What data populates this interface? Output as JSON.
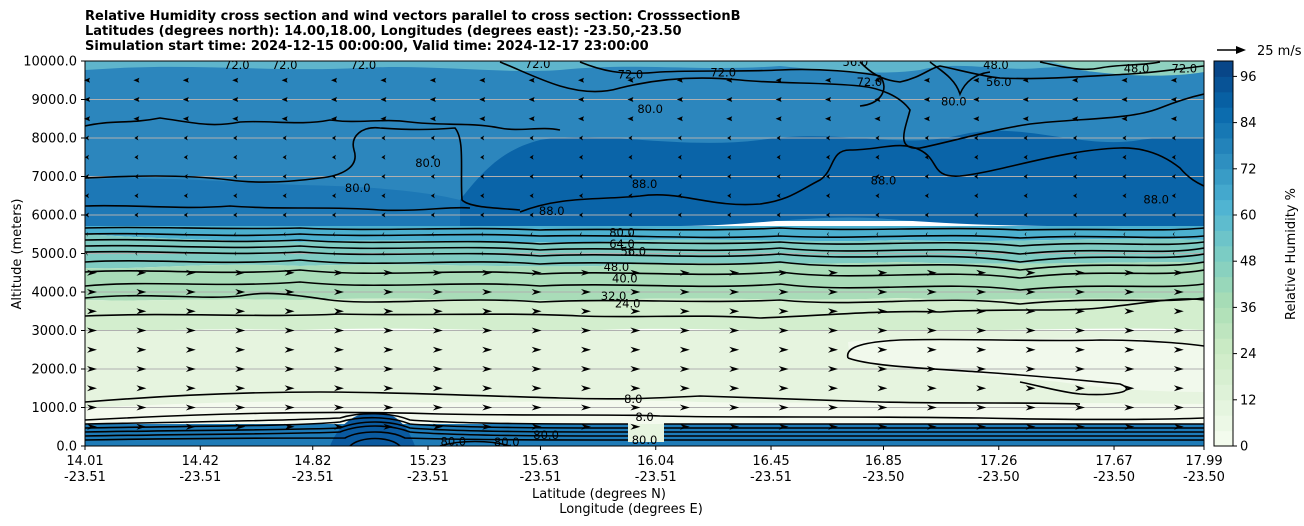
{
  "chart_data": {
    "type": "contour",
    "title_lines": [
      "Relative Humidity cross section and wind vectors parallel to cross section: CrosssectionB",
      "Latitudes (degrees north): 14.00,18.00, Longitudes (degrees east): -23.50,-23.50",
      "Simulation start time: 2024-12-15 00:00:00, Valid time: 2024-12-17 23:00:00"
    ],
    "xlabel_lines": [
      "Latitude (degrees N)",
      "Longitude (degrees E)"
    ],
    "ylabel": "Altitude (meters)",
    "colorbar_label": "Relative Humidity %",
    "quiver_key_label": "25 m/s",
    "ylim": [
      0,
      10000
    ],
    "yticks": [
      "0.0",
      "1000.0",
      "2000.0",
      "3000.0",
      "4000.0",
      "5000.0",
      "6000.0",
      "7000.0",
      "8000.0",
      "9000.0",
      "10000.0"
    ],
    "xticks_lat": [
      "14.01",
      "14.42",
      "14.82",
      "15.23",
      "15.63",
      "16.04",
      "16.45",
      "16.85",
      "17.26",
      "17.67",
      "17.99"
    ],
    "xticks_lon": [
      "-23.51",
      "-23.51",
      "-23.51",
      "-23.51",
      "-23.51",
      "-23.51",
      "-23.51",
      "-23.50",
      "-23.50",
      "-23.50",
      "-23.50"
    ],
    "colorbar_ticks": [
      "0",
      "12",
      "24",
      "36",
      "48",
      "60",
      "72",
      "84",
      "96"
    ],
    "colorbar_range": [
      0,
      100
    ],
    "contour_labels": [
      {
        "text": "72.0",
        "lat": 14.55,
        "alt": 9900
      },
      {
        "text": "72.0",
        "lat": 14.72,
        "alt": 9900
      },
      {
        "text": "72.0",
        "lat": 15.0,
        "alt": 9900
      },
      {
        "text": "72.0",
        "lat": 15.62,
        "alt": 9920
      },
      {
        "text": "72.0",
        "lat": 15.95,
        "alt": 9650
      },
      {
        "text": "72.0",
        "lat": 16.28,
        "alt": 9700
      },
      {
        "text": "56.0",
        "lat": 16.75,
        "alt": 9980
      },
      {
        "text": "72.0",
        "lat": 16.8,
        "alt": 9450
      },
      {
        "text": "48.0",
        "lat": 17.25,
        "alt": 9900
      },
      {
        "text": "56.0",
        "lat": 17.26,
        "alt": 9450
      },
      {
        "text": "48.0",
        "lat": 17.75,
        "alt": 9800
      },
      {
        "text": "72.0",
        "lat": 17.92,
        "alt": 9800
      },
      {
        "text": "80.0",
        "lat": 16.02,
        "alt": 8750
      },
      {
        "text": "80.0",
        "lat": 17.1,
        "alt": 8950
      },
      {
        "text": "80.0",
        "lat": 15.23,
        "alt": 7350
      },
      {
        "text": "80.0",
        "lat": 14.98,
        "alt": 6700
      },
      {
        "text": "88.0",
        "lat": 15.67,
        "alt": 6100
      },
      {
        "text": "88.0",
        "lat": 16.0,
        "alt": 6800
      },
      {
        "text": "88.0",
        "lat": 16.85,
        "alt": 6900
      },
      {
        "text": "88.0",
        "lat": 17.82,
        "alt": 6400
      },
      {
        "text": "80.0",
        "lat": 15.92,
        "alt": 5550
      },
      {
        "text": "64.0",
        "lat": 15.92,
        "alt": 5250
      },
      {
        "text": "56.0",
        "lat": 15.96,
        "alt": 5050
      },
      {
        "text": "48.0",
        "lat": 15.9,
        "alt": 4650
      },
      {
        "text": "40.0",
        "lat": 15.93,
        "alt": 4350
      },
      {
        "text": "32.0",
        "lat": 15.89,
        "alt": 3900
      },
      {
        "text": "24.0",
        "lat": 15.94,
        "alt": 3700
      },
      {
        "text": "8.0",
        "lat": 15.96,
        "alt": 1220
      },
      {
        "text": "8.0",
        "lat": 16.0,
        "alt": 750
      },
      {
        "text": "80.0",
        "lat": 15.32,
        "alt": 120
      },
      {
        "text": "80.0",
        "lat": 15.51,
        "alt": 100
      },
      {
        "text": "80.0",
        "lat": 15.65,
        "alt": 280
      },
      {
        "text": "80.0",
        "lat": 16.0,
        "alt": 150
      }
    ]
  },
  "colors": {
    "cmap": [
      "#f7fcf0",
      "#e0f3db",
      "#ccebc5",
      "#a8ddb5",
      "#7bccc4",
      "#4eb3d3",
      "#2b8cbe",
      "#0868ac",
      "#084081"
    ],
    "contour_line": "#000000",
    "grid": "#b0b0b0"
  }
}
